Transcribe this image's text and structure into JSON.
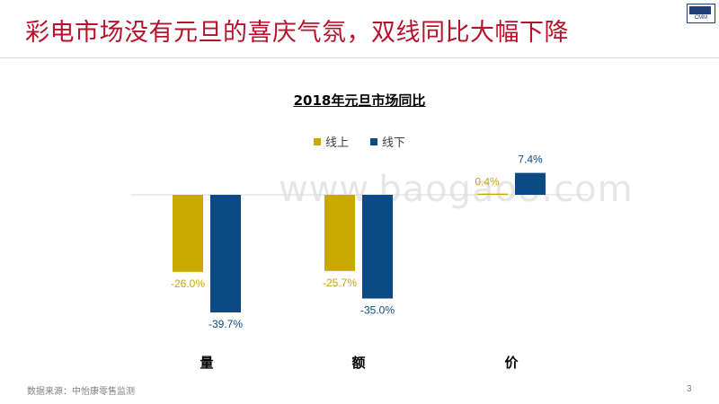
{
  "slide": {
    "title": "彩电市场没有元旦的喜庆气氛，双线同比大幅下降",
    "source": "数据来源：中怡康零售监测",
    "page_number": "3",
    "watermark": "www.baogao8.com"
  },
  "colors": {
    "title_red": "#b5132c",
    "online": "#c9a800",
    "offline": "#0c4a86"
  },
  "chart_data": {
    "type": "bar",
    "title": "2018年元旦市场同比",
    "categories": [
      "量",
      "额",
      "价"
    ],
    "series": [
      {
        "name": "线上",
        "values": [
          -26.0,
          -25.7,
          0.4
        ],
        "labels": [
          "-26.0%",
          "-25.7%",
          "0.4%"
        ]
      },
      {
        "name": "线下",
        "values": [
          -39.7,
          -35.0,
          7.4
        ],
        "labels": [
          "-39.7%",
          "-35.0%",
          "7.4%"
        ]
      }
    ],
    "xlabel": "",
    "ylabel": "",
    "ylim": [
      -45,
      10
    ],
    "grid": false,
    "legend": "top-center"
  }
}
